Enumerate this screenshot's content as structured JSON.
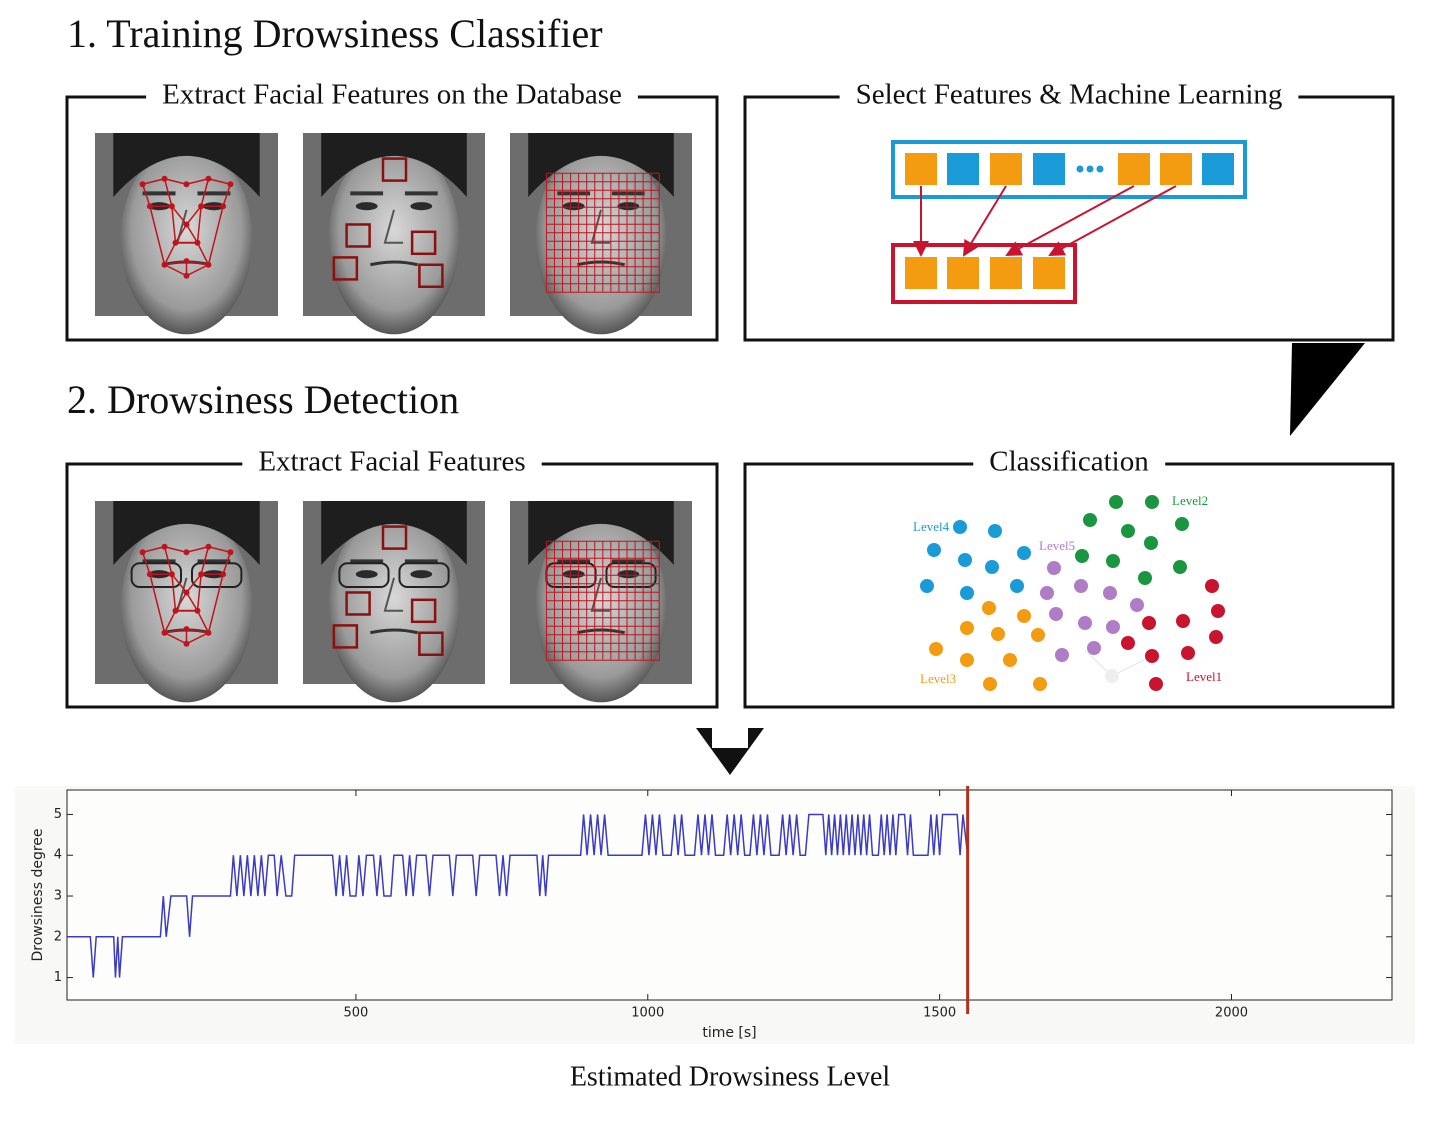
{
  "sections": [
    {
      "title": "1. Training Drowsiness Classifier",
      "panels": [
        "Extract Facial Features on the Database",
        "Select Features & Machine Learning"
      ]
    },
    {
      "title": "2. Drowsiness Detection",
      "panels": [
        "Extract Facial Features",
        "Classification"
      ]
    }
  ],
  "classification": {
    "labels": [
      "Level4",
      "Level5",
      "Level2",
      "Level3",
      "Level1"
    ]
  },
  "caption": "Estimated Drowsiness Level",
  "chart_data": {
    "type": "line",
    "xlabel": "time [s]",
    "ylabel": "Drowsiness degree",
    "color": "#3b3bc4",
    "xlim": [
      5,
      2275
    ],
    "ylim": [
      0.45,
      5.6
    ],
    "xticks": [
      500,
      1000,
      1500,
      2000
    ],
    "yticks": [
      1,
      2,
      3,
      4,
      5
    ],
    "vline": 1548,
    "vline_color": "#b03020",
    "x": [
      7,
      45,
      50,
      55,
      85,
      88,
      92,
      95,
      100,
      165,
      170,
      175,
      183,
      210,
      215,
      220,
      285,
      290,
      296,
      302,
      308,
      314,
      320,
      326,
      332,
      338,
      344,
      350,
      360,
      365,
      372,
      380,
      390,
      395,
      460,
      466,
      472,
      478,
      484,
      490,
      500,
      505,
      512,
      518,
      530,
      536,
      542,
      548,
      560,
      565,
      580,
      586,
      592,
      598,
      604,
      620,
      626,
      632,
      660,
      666,
      672,
      700,
      706,
      712,
      740,
      746,
      752,
      758,
      764,
      810,
      815,
      820,
      825,
      830,
      885,
      890,
      896,
      902,
      908,
      914,
      920,
      926,
      932,
      990,
      996,
      1002,
      1008,
      1014,
      1020,
      1026,
      1040,
      1046,
      1052,
      1058,
      1064,
      1080,
      1086,
      1092,
      1098,
      1104,
      1110,
      1116,
      1130,
      1136,
      1142,
      1148,
      1154,
      1160,
      1166,
      1175,
      1181,
      1187,
      1193,
      1199,
      1205,
      1211,
      1225,
      1231,
      1237,
      1243,
      1249,
      1255,
      1261,
      1270,
      1276,
      1300,
      1305,
      1310,
      1315,
      1320,
      1325,
      1330,
      1335,
      1340,
      1345,
      1350,
      1355,
      1360,
      1365,
      1370,
      1375,
      1380,
      1385,
      1395,
      1400,
      1405,
      1410,
      1415,
      1420,
      1425,
      1430,
      1440,
      1445,
      1450,
      1455,
      1480,
      1485,
      1490,
      1495,
      1500,
      1505,
      1530,
      1535,
      1540,
      1548
    ],
    "values": [
      2,
      2,
      1,
      2,
      2,
      1,
      2,
      1,
      2,
      2,
      3,
      2,
      3,
      3,
      2,
      3,
      3,
      4,
      3,
      4,
      3,
      4,
      3,
      4,
      3,
      4,
      3,
      4,
      4,
      3,
      4,
      3,
      3,
      4,
      4,
      3,
      4,
      3,
      4,
      3,
      3,
      4,
      3,
      4,
      4,
      3,
      4,
      3,
      3,
      4,
      4,
      3,
      4,
      3,
      4,
      4,
      3,
      4,
      4,
      3,
      4,
      4,
      3,
      4,
      4,
      3,
      4,
      3,
      4,
      4,
      3,
      4,
      3,
      4,
      4,
      5,
      4,
      5,
      4,
      5,
      4,
      5,
      4,
      4,
      5,
      4,
      5,
      4,
      5,
      4,
      4,
      5,
      4,
      5,
      4,
      4,
      5,
      4,
      5,
      4,
      5,
      4,
      4,
      5,
      4,
      5,
      4,
      5,
      4,
      4,
      5,
      4,
      5,
      4,
      5,
      4,
      4,
      5,
      4,
      5,
      4,
      5,
      4,
      4,
      5,
      5,
      4,
      5,
      4,
      5,
      4,
      5,
      4,
      5,
      4,
      5,
      4,
      5,
      4,
      5,
      4,
      5,
      4,
      4,
      5,
      4,
      5,
      4,
      5,
      4,
      5,
      5,
      4,
      5,
      4,
      4,
      5,
      4,
      5,
      4,
      5,
      5,
      4,
      5,
      4
    ]
  }
}
